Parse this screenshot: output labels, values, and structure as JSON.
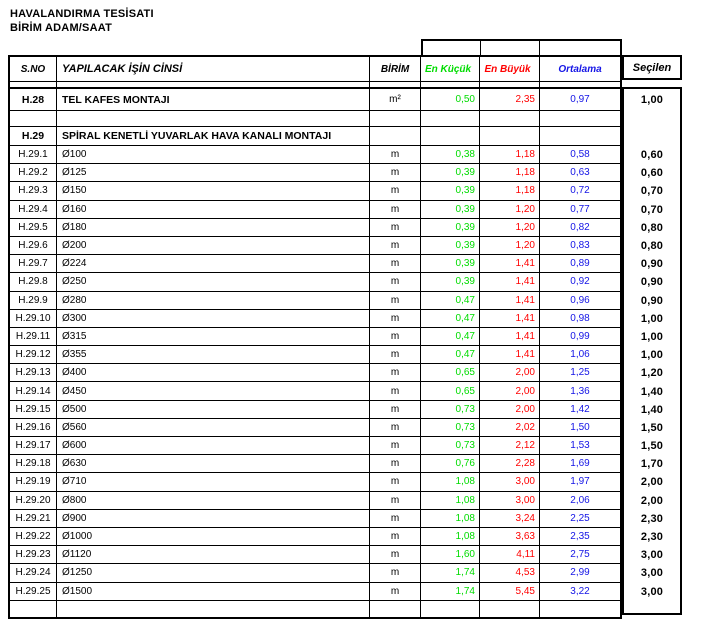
{
  "title_line1": "HAVALANDIRMA TESİSATI",
  "title_line2": "BİRİM ADAM/SAAT",
  "colors": {
    "min": "#00DC00",
    "max": "#FF0000",
    "avg": "#1414E6",
    "text": "#000000"
  },
  "table": {
    "headers": {
      "sno": "S.NO",
      "job": "YAPILACAK İŞİN CİNSİ",
      "unit": "BİRİM",
      "min": "En Küçük",
      "max": "En Büyük",
      "avg": "Ortalama",
      "selected": "Seçilen"
    },
    "rows": [
      {
        "type": "h28",
        "sno": "H.28",
        "job": "TEL KAFES MONTAJI",
        "unit": "m²",
        "min": "0,50",
        "max": "2,35",
        "avg": "0,97",
        "sel": "1,00"
      },
      {
        "type": "empty1",
        "sno": "",
        "job": "",
        "unit": "",
        "min": "",
        "max": "",
        "avg": "",
        "sel": ""
      },
      {
        "type": "section",
        "sno": "H.29",
        "job": "SPİRAL KENETLİ YUVARLAK HAVA KANALI MONTAJI",
        "unit": "",
        "min": "",
        "max": "",
        "avg": "",
        "sel": ""
      },
      {
        "type": "item",
        "sno": "H.29.1",
        "job": "Ø100",
        "unit": "m",
        "min": "0,38",
        "max": "1,18",
        "avg": "0,58",
        "sel": "0,60"
      },
      {
        "type": "item",
        "sno": "H.29.2",
        "job": "Ø125",
        "unit": "m",
        "min": "0,39",
        "max": "1,18",
        "avg": "0,63",
        "sel": "0,60"
      },
      {
        "type": "item",
        "sno": "H.29.3",
        "job": "Ø150",
        "unit": "m",
        "min": "0,39",
        "max": "1,18",
        "avg": "0,72",
        "sel": "0,70"
      },
      {
        "type": "item",
        "sno": "H.29.4",
        "job": "Ø160",
        "unit": "m",
        "min": "0,39",
        "max": "1,20",
        "avg": "0,77",
        "sel": "0,70"
      },
      {
        "type": "item",
        "sno": "H.29.5",
        "job": "Ø180",
        "unit": "m",
        "min": "0,39",
        "max": "1,20",
        "avg": "0,82",
        "sel": "0,80"
      },
      {
        "type": "item",
        "sno": "H.29.6",
        "job": "Ø200",
        "unit": "m",
        "min": "0,39",
        "max": "1,20",
        "avg": "0,83",
        "sel": "0,80"
      },
      {
        "type": "item",
        "sno": "H.29.7",
        "job": "Ø224",
        "unit": "m",
        "min": "0,39",
        "max": "1,41",
        "avg": "0,89",
        "sel": "0,90"
      },
      {
        "type": "item",
        "sno": "H.29.8",
        "job": "Ø250",
        "unit": "m",
        "min": "0,39",
        "max": "1,41",
        "avg": "0,92",
        "sel": "0,90"
      },
      {
        "type": "item",
        "sno": "H.29.9",
        "job": "Ø280",
        "unit": "m",
        "min": "0,47",
        "max": "1,41",
        "avg": "0,96",
        "sel": "0,90"
      },
      {
        "type": "item",
        "sno": "H.29.10",
        "job": "Ø300",
        "unit": "m",
        "min": "0,47",
        "max": "1,41",
        "avg": "0,98",
        "sel": "1,00"
      },
      {
        "type": "item",
        "sno": "H.29.11",
        "job": "Ø315",
        "unit": "m",
        "min": "0,47",
        "max": "1,41",
        "avg": "0,99",
        "sel": "1,00"
      },
      {
        "type": "item",
        "sno": "H.29.12",
        "job": "Ø355",
        "unit": "m",
        "min": "0,47",
        "max": "1,41",
        "avg": "1,06",
        "sel": "1,00"
      },
      {
        "type": "item",
        "sno": "H.29.13",
        "job": "Ø400",
        "unit": "m",
        "min": "0,65",
        "max": "2,00",
        "avg": "1,25",
        "sel": "1,20"
      },
      {
        "type": "item",
        "sno": "H.29.14",
        "job": "Ø450",
        "unit": "m",
        "min": "0,65",
        "max": "2,00",
        "avg": "1,36",
        "sel": "1,40"
      },
      {
        "type": "item",
        "sno": "H.29.15",
        "job": "Ø500",
        "unit": "m",
        "min": "0,73",
        "max": "2,00",
        "avg": "1,42",
        "sel": "1,40"
      },
      {
        "type": "item",
        "sno": "H.29.16",
        "job": "Ø560",
        "unit": "m",
        "min": "0,73",
        "max": "2,02",
        "avg": "1,50",
        "sel": "1,50"
      },
      {
        "type": "item",
        "sno": "H.29.17",
        "job": "Ø600",
        "unit": "m",
        "min": "0,73",
        "max": "2,12",
        "avg": "1,53",
        "sel": "1,50"
      },
      {
        "type": "item",
        "sno": "H.29.18",
        "job": "Ø630",
        "unit": "m",
        "min": "0,76",
        "max": "2,28",
        "avg": "1,69",
        "sel": "1,70"
      },
      {
        "type": "item",
        "sno": "H.29.19",
        "job": "Ø710",
        "unit": "m",
        "min": "1,08",
        "max": "3,00",
        "avg": "1,97",
        "sel": "2,00"
      },
      {
        "type": "item",
        "sno": "H.29.20",
        "job": "Ø800",
        "unit": "m",
        "min": "1,08",
        "max": "3,00",
        "avg": "2,06",
        "sel": "2,00"
      },
      {
        "type": "item",
        "sno": "H.29.21",
        "job": "Ø900",
        "unit": "m",
        "min": "1,08",
        "max": "3,24",
        "avg": "2,25",
        "sel": "2,30"
      },
      {
        "type": "item",
        "sno": "H.29.22",
        "job": "Ø1000",
        "unit": "m",
        "min": "1,08",
        "max": "3,63",
        "avg": "2,35",
        "sel": "2,30"
      },
      {
        "type": "item",
        "sno": "H.29.23",
        "job": "Ø1120",
        "unit": "m",
        "min": "1,60",
        "max": "4,11",
        "avg": "2,75",
        "sel": "3,00"
      },
      {
        "type": "item",
        "sno": "H.29.24",
        "job": "Ø1250",
        "unit": "m",
        "min": "1,74",
        "max": "4,53",
        "avg": "2,99",
        "sel": "3,00"
      },
      {
        "type": "item",
        "sno": "H.29.25",
        "job": "Ø1500",
        "unit": "m",
        "min": "1,74",
        "max": "5,45",
        "avg": "3,22",
        "sel": "3,00"
      },
      {
        "type": "emptyend",
        "sno": "",
        "job": "",
        "unit": "",
        "min": "",
        "max": "",
        "avg": "",
        "sel": ""
      }
    ]
  }
}
